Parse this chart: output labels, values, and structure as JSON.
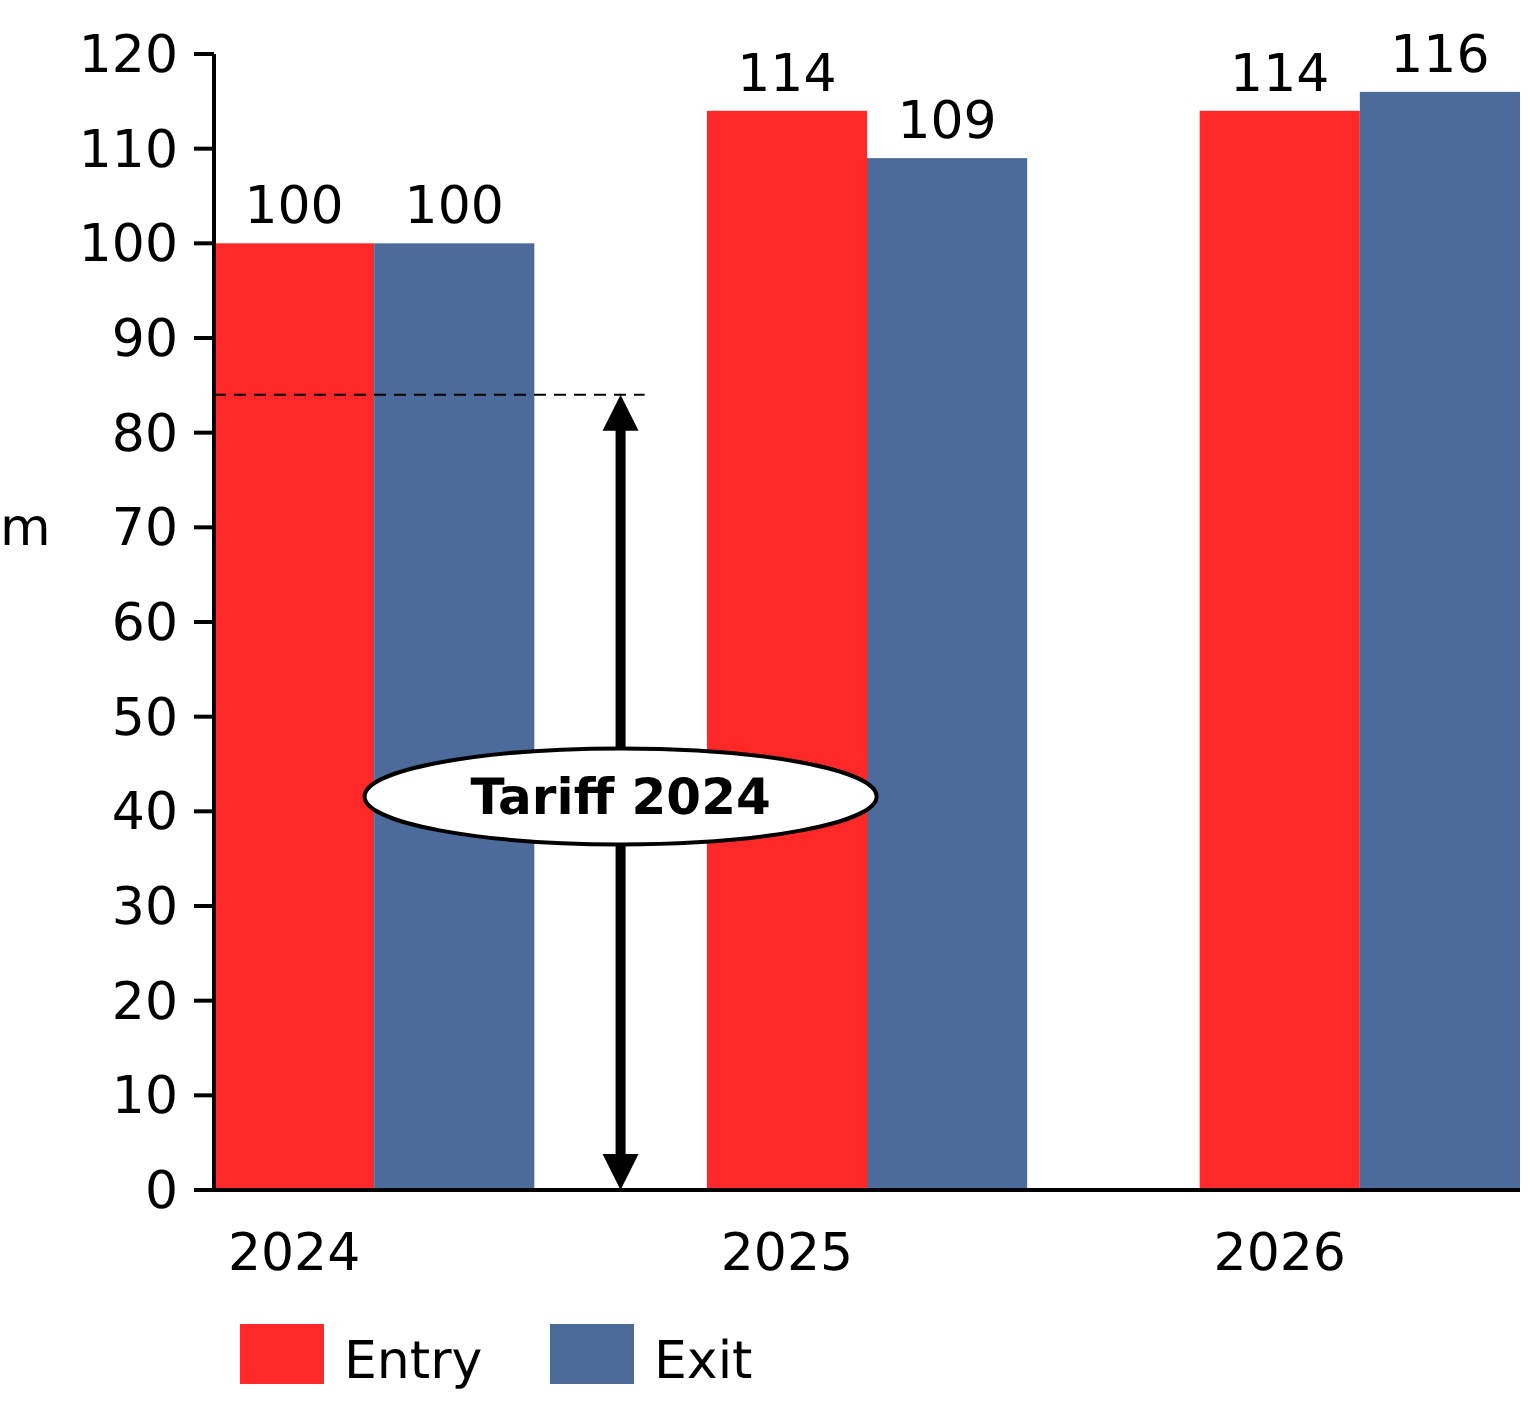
{
  "chart_data": {
    "type": "bar",
    "ylabel": "m",
    "categories": [
      "2024",
      "2025",
      "2026"
    ],
    "series": [
      {
        "name": "Entry",
        "color": "#ff2828",
        "values": [
          100,
          114,
          114
        ]
      },
      {
        "name": "Exit",
        "color": "#4c6b9a",
        "values": [
          100,
          109,
          116
        ]
      }
    ],
    "ylim": [
      0,
      120
    ],
    "yticks": [
      0,
      10,
      20,
      30,
      40,
      50,
      60,
      70,
      80,
      90,
      100,
      110,
      120
    ],
    "data_labels": true,
    "legend": "bottom",
    "grid": false,
    "annotations": [
      "Tariff 2024"
    ],
    "ref_lines": [
      {
        "axis": "y",
        "value": 84,
        "line_style": "dashed"
      }
    ]
  }
}
